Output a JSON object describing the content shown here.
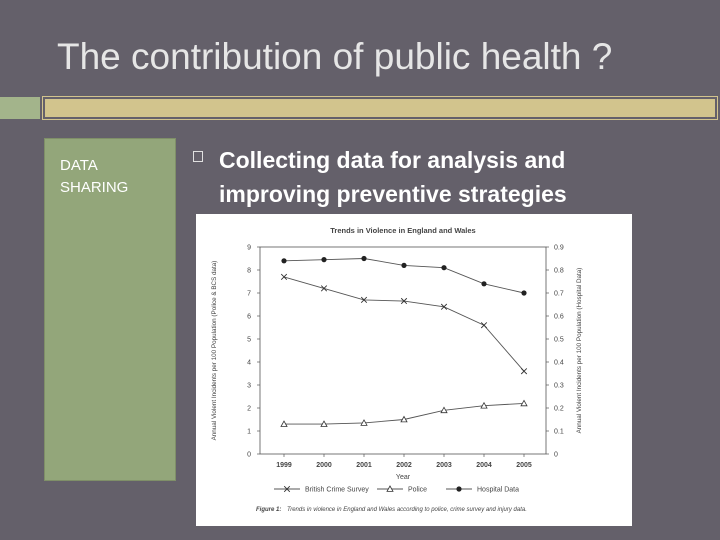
{
  "slide": {
    "title": "The contribution of public health ?",
    "side_label_line1": "DATA",
    "side_label_line2": "SHARING",
    "bullet_heading_line1": "Collecting data for analysis and",
    "bullet_heading_line2": "improving preventive strategies"
  },
  "colors": {
    "background": "#64606a",
    "side_panel": "#93a67a",
    "rule_bar": "#d2c48d"
  },
  "chart_data": {
    "type": "line",
    "title": "Trends in Violence in England and Wales",
    "xlabel": "Year",
    "ylabel_left": "Annual Violent Incidents per 100 Population (Police & BCS data)",
    "ylabel_right": "Annual Violent Incidents per 100 Population (Hospital Data)",
    "x": [
      "1999",
      "2000",
      "2001",
      "2002",
      "2003",
      "2004",
      "2005"
    ],
    "ylim_left": [
      0,
      9
    ],
    "ylim_right": [
      0,
      0.9
    ],
    "yticks_left": [
      "0",
      "1",
      "2",
      "3",
      "4",
      "5",
      "6",
      "7",
      "8",
      "9"
    ],
    "yticks_right": [
      "0",
      "0.1",
      "0.2",
      "0.3",
      "0.4",
      "0.5",
      "0.6",
      "0.7",
      "0.8",
      "0.9"
    ],
    "series": [
      {
        "name": "British Crime Survey",
        "marker": "x",
        "axis": "left",
        "values": [
          7.7,
          7.2,
          6.7,
          6.65,
          6.4,
          5.6,
          3.6
        ]
      },
      {
        "name": "Police",
        "marker": "triangle",
        "axis": "left",
        "values": [
          1.3,
          1.3,
          1.35,
          1.5,
          1.9,
          2.1,
          2.2
        ]
      },
      {
        "name": "Hospital Data",
        "marker": "dot",
        "axis": "right",
        "values": [
          0.84,
          0.845,
          0.85,
          0.82,
          0.81,
          0.74,
          0.7
        ]
      }
    ],
    "legend_position": "bottom",
    "grid": false,
    "caption_label": "Figure 1:",
    "caption_text": "Trends in violence in England and Wales according to police, crime survey and injury data."
  }
}
